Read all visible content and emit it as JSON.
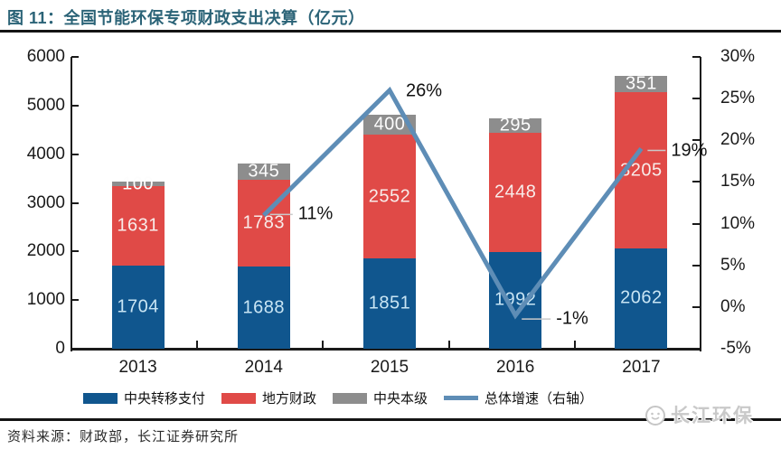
{
  "header": {
    "title": "图 11：全国节能环保专项财政支出决算（亿元）"
  },
  "source": {
    "text": "资料来源：财政部，长江证券研究所"
  },
  "watermark": {
    "text": "长江环保"
  },
  "chart_data": {
    "type": "bar",
    "stacked": true,
    "title": "全国节能环保专项财政支出决算（亿元）",
    "categories": [
      "2013",
      "2014",
      "2015",
      "2016",
      "2017"
    ],
    "series": [
      {
        "name": "中央转移支付",
        "type": "bar",
        "color": "#10568E",
        "values": [
          1704,
          1688,
          1851,
          1992,
          2062
        ]
      },
      {
        "name": "地方财政",
        "type": "bar",
        "color": "#E04A47",
        "values": [
          1631,
          1783,
          2552,
          2448,
          3205
        ]
      },
      {
        "name": "中央本级",
        "type": "bar",
        "color": "#8D8D8D",
        "values": [
          100,
          345,
          400,
          295,
          351
        ]
      }
    ],
    "line_series": {
      "name": "总体增速（右轴）",
      "axis": "right",
      "color": "#5E8DB6",
      "x": [
        "2014",
        "2015",
        "2016",
        "2017"
      ],
      "values": [
        11,
        26,
        -1,
        19
      ],
      "labels": [
        "11%",
        "26%",
        "-1%",
        "19%"
      ]
    },
    "ylim": [
      0,
      6000
    ],
    "y_ticks": [
      0,
      1000,
      2000,
      3000,
      4000,
      5000,
      6000
    ],
    "y2lim": [
      -5,
      30
    ],
    "y2_ticks": [
      -5,
      0,
      5,
      10,
      15,
      20,
      25,
      30
    ],
    "legend_position": "bottom",
    "grid": false
  }
}
